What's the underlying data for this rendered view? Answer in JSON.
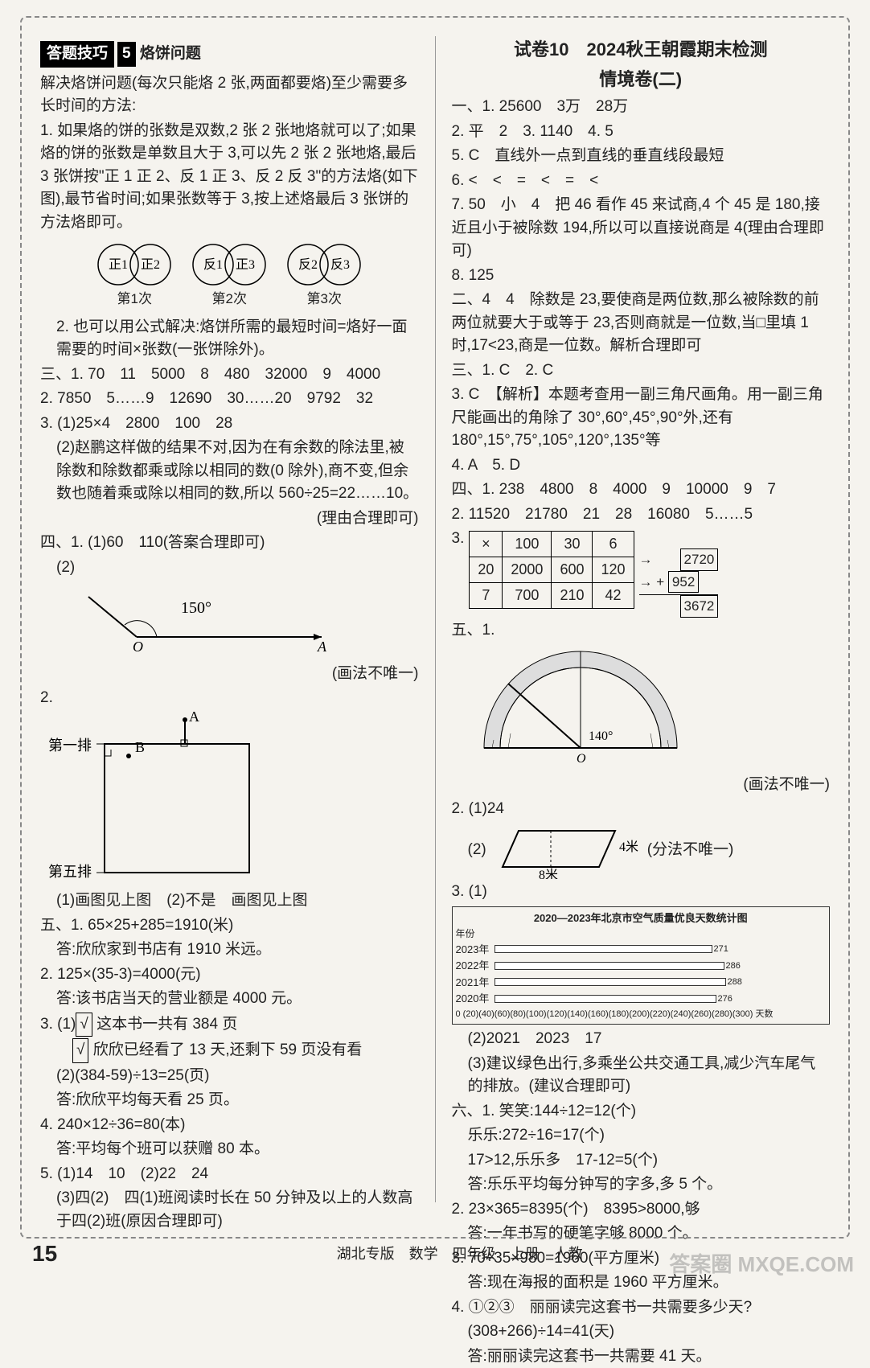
{
  "left": {
    "badge_label": "答题技巧",
    "badge_num": "5",
    "topic": "烙饼问题",
    "intro": "解决烙饼问题(每次只能烙 2 张,两面都要烙)至少需要多长时间的方法:",
    "step1": "1. 如果烙的饼的张数是双数,2 张 2 张地烙就可以了;如果烙的饼的张数是单数且大于 3,可以先 2 张 2 张地烙,最后 3 张饼按\"正 1 正 2、反 1 正 3、反 2 反 3\"的方法烙(如下图),最节省时间;如果张数等于 3,按上述烙最后 3 张饼的方法烙即可。",
    "circle_labels": [
      [
        "正1",
        "正2",
        "第1次"
      ],
      [
        "反1",
        "正3",
        "第2次"
      ],
      [
        "反2",
        "反3",
        "第3次"
      ]
    ],
    "step2": "2. 也可以用公式解决:烙饼所需的最短时间=烙好一面需要的时间×张数(一张饼除外)。",
    "s3_1": "三、1. 70　11　5000　8　480　32000　9　4000",
    "s3_2": "2. 7850　5……9　12690　30……20　9792　32",
    "s3_3a": "3. (1)25×4　2800　100　28",
    "s3_3b": "(2)赵鹏这样做的结果不对,因为在有余数的除法里,被除数和除数都乘或除以相同的数(0 除外),商不变,但余数也随着乘或除以相同的数,所以 560÷25=22……10。",
    "s3_3c": "(理由合理即可)",
    "s4_1": "四、1. (1)60　110(答案合理即可)",
    "s4_1b": "(2)",
    "angle_label": "150°",
    "angle_O": "O",
    "angle_A": "A",
    "angle_note": "(画法不唯一)",
    "s4_2": "2.",
    "sq_A": "A",
    "sq_B": "B",
    "sq_row1": "第一排",
    "sq_row5": "第五排",
    "s4_2note": "(1)画图见上图　(2)不是　画图见上图",
    "s5_1a": "五、1. 65×25+285=1910(米)",
    "s5_1b": "答:欣欣家到书店有 1910 米远。",
    "s5_2a": "2. 125×(35-3)=4000(元)",
    "s5_2b": "答:该书店当天的营业额是 4000 元。",
    "s5_3a": "3. (1) √ 这本书一共有 384 页",
    "s5_3b": "√ 欣欣已经看了 13 天,还剩下 59 页没有看",
    "s5_3c": "(2)(384-59)÷13=25(页)",
    "s5_3d": "答:欣欣平均每天看 25 页。",
    "s5_4a": "4. 240×12÷36=80(本)",
    "s5_4b": "答:平均每个班可以获赠 80 本。",
    "s5_5a": "5. (1)14　10　(2)22　24",
    "s5_5b": "(3)四(2)　四(1)班阅读时长在 50 分钟及以上的人数高于四(2)班(原因合理即可)"
  },
  "right": {
    "title1": "试卷10　2024秋",
    "title_name": "王朝霞",
    "title2": "期末检测",
    "subtitle": "情境卷(二)",
    "r1_1": "一、1. 25600　3万　28万",
    "r1_2": "2. 平　2　3. 1140　4. 5",
    "r1_5": "5. C　直线外一点到直线的垂直线段最短",
    "r1_6": "6. <　<　=　<　=　<",
    "r1_7": "7. 50　小　4　把 46 看作 45 来试商,4 个 45 是 180,接近且小于被除数 194,所以可以直接说商是 4(理由合理即可)",
    "r1_8": "8. 125",
    "r2": "二、4　4　除数是 23,要使商是两位数,那么被除数的前两位就要大于或等于 23,否则商就是一位数,当□里填 1 时,17<23,商是一位数。解析合理即可",
    "r3_1": "三、1. C　2. C",
    "r3_3a": "3. C　【解析】本题考查用一副三角尺画角。用一副三角尺能画出的角除了 30°,60°,45°,90°外,还有 180°,15°,75°,105°,120°,135°等",
    "r3_4": "4. A　5. D",
    "r4_1": "四、1. 238　4800　8　4000　9　10000　9　7",
    "r4_2": "2. 11520　21780　21　28　16080　5……5",
    "r4_3": "3.",
    "table": {
      "header": [
        "×",
        "100",
        "30",
        "6"
      ],
      "rows": [
        [
          "20",
          "2000",
          "600",
          "120"
        ],
        [
          "7",
          "700",
          "210",
          "42"
        ]
      ],
      "results": [
        "2720",
        "952",
        "3672"
      ]
    },
    "r5_1": "五、1.",
    "protractor_angle": "140°",
    "protractor_O": "O",
    "protractor_note": "(画法不唯一)",
    "r5_2a": "2. (1)24",
    "r5_2b": "(2)",
    "para_h": "4米",
    "para_w": "8米",
    "para_note": "(分法不唯一)",
    "r5_3": "3. (1)",
    "chart_title": "2020—2023年北京市空气质量优良天数统计图",
    "chart": {
      "years": [
        "2023年",
        "2022年",
        "2021年",
        "2020年"
      ],
      "values": [
        271,
        286,
        288,
        276
      ],
      "xaxis": "0 (20)(40)(60)(80)(100)(120)(140)(160)(180)(200)(220)(240)(260)(280)(300) 天数",
      "ylabel": "年份"
    },
    "r5_3b": "(2)2021　2023　17",
    "r5_3c": "(3)建议绿色出行,多乘坐公共交通工具,减少汽车尾气的排放。(建议合理即可)",
    "r6_1a": "六、1. 笑笑:144÷12=12(个)",
    "r6_1b": "乐乐:272÷16=17(个)",
    "r6_1c": "17>12,乐乐多　17-12=5(个)",
    "r6_1d": "答:乐乐平均每分钟写的字多,多 5 个。",
    "r6_2a": "2. 23×365=8395(个)　8395>8000,够",
    "r6_2b": "答:一年书写的硬笔字够 8000 个。",
    "r6_3a": "3. 70÷35×980=1960(平方厘米)",
    "r6_3b": "答:现在海报的面积是 1960 平方厘米。",
    "r6_4a": "4. ①②③　丽丽读完这套书一共需要多少天?",
    "r6_4b": "(308+266)÷14=41(天)",
    "r6_4c": "答:丽丽读完这套书一共需要 41 天。"
  },
  "footer": {
    "page": "15",
    "info": "湖北专版　数学　四年级　上册　人教"
  },
  "watermark": "答案圈 MXQE.COM"
}
